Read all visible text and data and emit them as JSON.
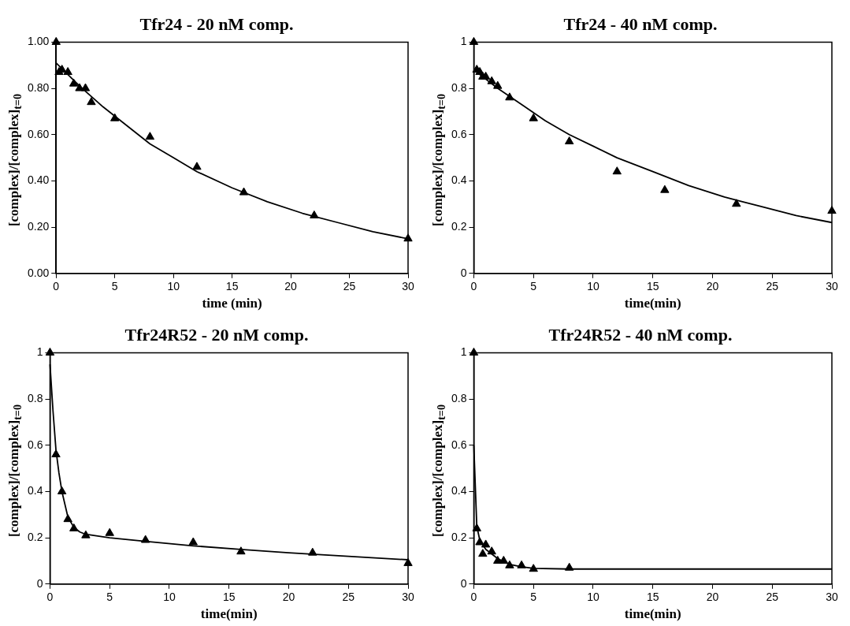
{
  "chart_data": [
    {
      "type": "scatter",
      "title": "Tfr24 - 20 nM comp.",
      "xlabel": "time (min)",
      "ylabel": "[complex]/[complex]$_{t=0}$",
      "xlim": [
        0,
        30
      ],
      "xticks": [
        0,
        5,
        10,
        15,
        20,
        25,
        30
      ],
      "ylim": [
        0,
        1
      ],
      "yticks": [
        {
          "value": 0,
          "label": "0.00"
        },
        {
          "value": 0.2,
          "label": "0.20"
        },
        {
          "value": 0.4,
          "label": "0.40"
        },
        {
          "value": 0.6,
          "label": "0.60"
        },
        {
          "value": 0.8,
          "label": "0.80"
        },
        {
          "value": 1,
          "label": "1.00"
        }
      ],
      "grid": false,
      "legend": false,
      "series": [
        {
          "type": "scatter",
          "color": "#000000",
          "marker": "triangle",
          "x": [
            0,
            0.25,
            0.5,
            1,
            1.5,
            2,
            2.5,
            3,
            5,
            8,
            12,
            16,
            22,
            30
          ],
          "values": [
            1.0,
            0.87,
            0.88,
            0.87,
            0.82,
            0.8,
            0.8,
            0.74,
            0.67,
            0.59,
            0.46,
            0.35,
            0.25,
            0.15
          ]
        },
        {
          "type": "line",
          "color": "#000000",
          "marker": "none",
          "line_style": "solid",
          "x": [
            0,
            2,
            4,
            6,
            8,
            10,
            12,
            15,
            18,
            21,
            24,
            27,
            30
          ],
          "values": [
            0.91,
            0.81,
            0.72,
            0.64,
            0.56,
            0.5,
            0.44,
            0.37,
            0.31,
            0.26,
            0.22,
            0.18,
            0.15
          ]
        }
      ]
    },
    {
      "type": "scatter",
      "title": "Tfr24 - 40 nM comp.",
      "xlabel": "time(min)",
      "ylabel": "[complex]/[complex]$_{t=0}$",
      "xlim": [
        0,
        30
      ],
      "xticks": [
        0,
        5,
        10,
        15,
        20,
        25,
        30
      ],
      "ylim": [
        0,
        1
      ],
      "yticks": [
        0,
        0.2,
        0.4,
        0.6,
        0.8,
        1
      ],
      "grid": false,
      "legend": false,
      "series": [
        {
          "type": "scatter",
          "color": "#000000",
          "marker": "triangle",
          "x": [
            0,
            0.25,
            0.5,
            0.75,
            1,
            1.5,
            2,
            3,
            5,
            8,
            12,
            16,
            22,
            30
          ],
          "values": [
            1.0,
            0.88,
            0.87,
            0.85,
            0.85,
            0.83,
            0.81,
            0.76,
            0.67,
            0.57,
            0.44,
            0.36,
            0.3,
            0.27
          ]
        },
        {
          "type": "line",
          "color": "#000000",
          "marker": "none",
          "line_style": "solid",
          "x": [
            0,
            2,
            4,
            6,
            8,
            10,
            12,
            15,
            18,
            21,
            24,
            27,
            30
          ],
          "values": [
            0.88,
            0.8,
            0.73,
            0.66,
            0.6,
            0.55,
            0.5,
            0.44,
            0.38,
            0.33,
            0.29,
            0.25,
            0.22
          ]
        }
      ]
    },
    {
      "type": "scatter",
      "title": "Tfr24R52 - 20 nM comp.",
      "xlabel": "time(min)",
      "ylabel": "[complex]/[complex]$_{t=0}$",
      "xlim": [
        0,
        30
      ],
      "xticks": [
        0,
        5,
        10,
        15,
        20,
        25,
        30
      ],
      "ylim": [
        0,
        1
      ],
      "yticks": [
        0,
        0.2,
        0.4,
        0.6,
        0.8,
        1
      ],
      "grid": false,
      "legend": false,
      "series": [
        {
          "type": "scatter",
          "color": "#000000",
          "marker": "triangle",
          "x": [
            0,
            0.5,
            1,
            1.5,
            2,
            3,
            5,
            8,
            12,
            16,
            22,
            30
          ],
          "values": [
            1.0,
            0.56,
            0.4,
            0.28,
            0.24,
            0.21,
            0.22,
            0.19,
            0.18,
            0.14,
            0.135,
            0.09
          ]
        },
        {
          "type": "line",
          "color": "#000000",
          "marker": "none",
          "line_style": "solid",
          "x": [
            0,
            0.25,
            0.5,
            0.75,
            1,
            1.5,
            2,
            2.5,
            3,
            5,
            8,
            12,
            16,
            20,
            25,
            30
          ],
          "values": [
            0.95,
            0.75,
            0.58,
            0.48,
            0.4,
            0.29,
            0.245,
            0.225,
            0.215,
            0.2,
            0.185,
            0.165,
            0.15,
            0.135,
            0.12,
            0.105
          ]
        }
      ]
    },
    {
      "type": "scatter",
      "title": "Tfr24R52 - 40 nM comp.",
      "xlabel": "time(min)",
      "ylabel": "[complex]/[complex]$_{t=0}$",
      "xlim": [
        0,
        30
      ],
      "xticks": [
        0,
        5,
        10,
        15,
        20,
        25,
        30
      ],
      "ylim": [
        0,
        1
      ],
      "yticks": [
        0,
        0.2,
        0.4,
        0.6,
        0.8,
        1
      ],
      "grid": false,
      "legend": false,
      "series": [
        {
          "type": "scatter",
          "color": "#000000",
          "marker": "triangle",
          "x": [
            0,
            0.25,
            0.5,
            0.75,
            1,
            1.5,
            2,
            2.5,
            3,
            4,
            5,
            8
          ],
          "values": [
            1.0,
            0.24,
            0.18,
            0.13,
            0.17,
            0.14,
            0.1,
            0.1,
            0.08,
            0.08,
            0.065,
            0.07
          ]
        },
        {
          "type": "line",
          "color": "#000000",
          "marker": "none",
          "line_style": "solid",
          "x": [
            0,
            0.25,
            0.5,
            1,
            2,
            3,
            4,
            5,
            8,
            30
          ],
          "values": [
            0.6,
            0.25,
            0.19,
            0.15,
            0.11,
            0.085,
            0.075,
            0.068,
            0.065,
            0.065
          ]
        }
      ]
    }
  ]
}
